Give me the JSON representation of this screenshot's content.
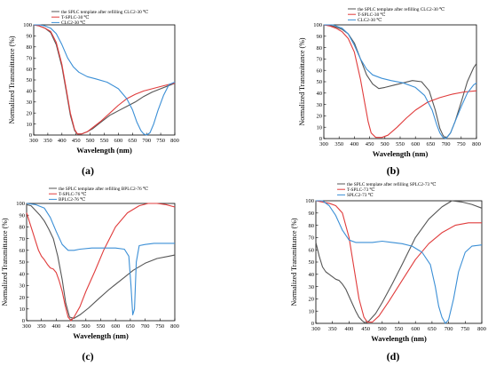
{
  "chart_data": [
    {
      "type": "line",
      "panel_label": "(a)",
      "xlabel": "Wavelength (nm)",
      "ylabel": "Normalized Transmittance (%)",
      "xlim": [
        300,
        800
      ],
      "ylim": [
        0,
        100
      ],
      "xticks": [
        300,
        350,
        400,
        450,
        500,
        550,
        600,
        650,
        700,
        750,
        800
      ],
      "yticks": [
        0,
        10,
        20,
        30,
        40,
        50,
        60,
        70,
        80,
        90,
        100
      ],
      "grid": false,
      "legend_position": "top-left",
      "series": [
        {
          "name": "the SPLC template after refilling CLC2-30 ℃",
          "color": "#555555",
          "x": [
            300,
            320,
            340,
            360,
            380,
            400,
            415,
            430,
            445,
            455,
            470,
            490,
            510,
            540,
            570,
            600,
            630,
            660,
            690,
            720,
            750,
            780,
            800
          ],
          "y": [
            100,
            99,
            97,
            93,
            82,
            62,
            40,
            18,
            4,
            1,
            1,
            3,
            6,
            12,
            18,
            22,
            26,
            30,
            35,
            39,
            42,
            45,
            47
          ]
        },
        {
          "name": "T-SPLC-30 ℃",
          "color": "#e03c3c",
          "x": [
            300,
            320,
            340,
            360,
            380,
            400,
            415,
            430,
            445,
            455,
            470,
            490,
            510,
            540,
            570,
            600,
            630,
            660,
            690,
            720,
            750,
            780,
            800
          ],
          "y": [
            100,
            99,
            97,
            94,
            84,
            64,
            42,
            20,
            5,
            1,
            1,
            3,
            7,
            13,
            20,
            27,
            33,
            37,
            40,
            42,
            44,
            46,
            47
          ]
        },
        {
          "name": "CLC2-30 ℃",
          "color": "#3b8fd6",
          "x": [
            300,
            320,
            340,
            360,
            380,
            400,
            420,
            440,
            460,
            490,
            520,
            560,
            600,
            630,
            650,
            665,
            680,
            690,
            700,
            712,
            725,
            740,
            760,
            780,
            800
          ],
          "y": [
            100,
            100,
            99,
            97,
            92,
            82,
            70,
            62,
            57,
            53,
            51,
            48,
            42,
            33,
            23,
            12,
            4,
            1,
            0,
            2,
            10,
            22,
            36,
            46,
            48
          ]
        }
      ]
    },
    {
      "type": "line",
      "panel_label": "(b)",
      "xlabel": "Wavelength (nm)",
      "ylabel": "Normalized Transmittance (%)",
      "xlim": [
        300,
        800
      ],
      "ylim": [
        0,
        100
      ],
      "xticks": [
        300,
        350,
        400,
        450,
        500,
        550,
        600,
        650,
        700,
        750,
        800
      ],
      "yticks": [
        0,
        10,
        20,
        30,
        40,
        50,
        60,
        70,
        80,
        90,
        100
      ],
      "grid": false,
      "legend_position": "top-right",
      "series": [
        {
          "name": "the SPLC template after refilling CLC2-30 ℃",
          "color": "#555555",
          "x": [
            300,
            330,
            360,
            380,
            400,
            420,
            440,
            460,
            480,
            500,
            530,
            560,
            590,
            620,
            645,
            665,
            680,
            690,
            700,
            715,
            730,
            750,
            770,
            790,
            800
          ],
          "y": [
            100,
            99,
            96,
            92,
            84,
            70,
            56,
            48,
            44,
            45,
            47,
            49,
            51,
            50,
            42,
            25,
            9,
            3,
            0,
            5,
            15,
            32,
            50,
            62,
            66
          ]
        },
        {
          "name": "T-SPLC-30 ℃",
          "color": "#e03c3c",
          "x": [
            300,
            320,
            340,
            360,
            380,
            400,
            420,
            435,
            445,
            455,
            470,
            490,
            510,
            540,
            570,
            600,
            640,
            680,
            720,
            760,
            800
          ],
          "y": [
            100,
            99,
            97,
            94,
            88,
            76,
            52,
            30,
            15,
            5,
            1,
            1,
            3,
            10,
            18,
            25,
            32,
            36,
            39,
            41,
            42
          ]
        },
        {
          "name": "CLC2-30 ℃",
          "color": "#3b8fd6",
          "x": [
            300,
            330,
            360,
            380,
            400,
            420,
            440,
            460,
            490,
            520,
            560,
            600,
            630,
            655,
            670,
            680,
            690,
            700,
            715,
            730,
            750,
            770,
            790,
            800
          ],
          "y": [
            100,
            100,
            97,
            92,
            82,
            70,
            61,
            56,
            53,
            51,
            49,
            45,
            38,
            25,
            12,
            5,
            1,
            0,
            5,
            15,
            28,
            40,
            47,
            49
          ]
        }
      ]
    },
    {
      "type": "line",
      "panel_label": "(c)",
      "xlabel": "Wavelength (nm)",
      "ylabel": "Normalized Transmittance (%)",
      "xlim": [
        300,
        800
      ],
      "ylim": [
        0,
        100
      ],
      "xticks": [
        300,
        350,
        400,
        450,
        500,
        550,
        600,
        650,
        700,
        750,
        800
      ],
      "yticks": [
        0,
        10,
        20,
        30,
        40,
        50,
        60,
        70,
        80,
        90,
        100
      ],
      "grid": false,
      "legend_position": "top-right",
      "series": [
        {
          "name": "the SPLC template after refilling BPLC2-76 ℃",
          "color": "#555555",
          "x": [
            300,
            315,
            330,
            345,
            360,
            375,
            390,
            405,
            420,
            432,
            445,
            460,
            480,
            510,
            540,
            580,
            620,
            660,
            700,
            740,
            780,
            800
          ],
          "y": [
            99,
            98,
            94,
            90,
            85,
            78,
            70,
            55,
            35,
            15,
            3,
            2,
            5,
            11,
            18,
            27,
            35,
            43,
            49,
            53,
            55,
            56
          ]
        },
        {
          "name": "T-SPLC-76 ℃",
          "color": "#e03c3c",
          "x": [
            300,
            310,
            320,
            330,
            340,
            350,
            360,
            370,
            380,
            390,
            400,
            410,
            420,
            430,
            440,
            450,
            460,
            480,
            500,
            530,
            560,
            600,
            640,
            680,
            710,
            740,
            770,
            800
          ],
          "y": [
            92,
            84,
            76,
            68,
            60,
            55,
            52,
            48,
            45,
            44,
            41,
            34,
            25,
            13,
            3,
            0,
            3,
            12,
            25,
            42,
            60,
            80,
            92,
            98,
            100,
            100,
            99,
            97
          ]
        },
        {
          "name": "BPLC2-76 ℃",
          "color": "#3b8fd6",
          "x": [
            300,
            330,
            360,
            380,
            400,
            420,
            440,
            460,
            480,
            520,
            560,
            600,
            630,
            645,
            652,
            658,
            664,
            670,
            680,
            700,
            730,
            760,
            800
          ],
          "y": [
            100,
            99,
            96,
            88,
            76,
            65,
            60,
            60,
            61,
            62,
            62,
            62,
            61,
            55,
            30,
            5,
            10,
            50,
            64,
            65,
            66,
            66,
            66
          ]
        }
      ]
    },
    {
      "type": "line",
      "panel_label": "(d)",
      "xlabel": "Wavelength (nm)",
      "ylabel": "Normalized Transmittance (%)",
      "xlim": [
        300,
        800
      ],
      "ylim": [
        0,
        100
      ],
      "xticks": [
        300,
        350,
        400,
        450,
        500,
        550,
        600,
        650,
        700,
        750,
        800
      ],
      "yticks": [
        0,
        10,
        20,
        30,
        40,
        50,
        60,
        70,
        80,
        90,
        100
      ],
      "grid": false,
      "legend_position": "top-center",
      "series": [
        {
          "name": "the SPLC template after refilling SPLC2-73 ℃",
          "color": "#555555",
          "x": [
            300,
            310,
            320,
            330,
            340,
            350,
            360,
            370,
            380,
            390,
            400,
            410,
            420,
            430,
            440,
            450,
            460,
            480,
            500,
            530,
            560,
            600,
            640,
            680,
            710,
            740,
            770,
            800
          ],
          "y": [
            66,
            55,
            46,
            42,
            40,
            38,
            36,
            35,
            32,
            28,
            22,
            16,
            10,
            5,
            2,
            0,
            2,
            8,
            17,
            32,
            48,
            70,
            85,
            95,
            100,
            99,
            97,
            94
          ]
        },
        {
          "name": "T-SPLC-73 ℃",
          "color": "#e03c3c",
          "x": [
            300,
            320,
            340,
            360,
            380,
            400,
            415,
            430,
            445,
            455,
            470,
            490,
            520,
            560,
            600,
            640,
            680,
            720,
            760,
            800
          ],
          "y": [
            100,
            99,
            98,
            96,
            90,
            70,
            45,
            20,
            5,
            1,
            1,
            6,
            18,
            35,
            52,
            65,
            74,
            80,
            82,
            82
          ]
        },
        {
          "name": "SPLC2-73 ℃",
          "color": "#3b8fd6",
          "x": [
            300,
            320,
            340,
            360,
            380,
            400,
            420,
            440,
            470,
            500,
            530,
            560,
            590,
            620,
            645,
            660,
            670,
            680,
            690,
            700,
            715,
            730,
            750,
            770,
            800
          ],
          "y": [
            100,
            100,
            96,
            88,
            76,
            68,
            66,
            66,
            66,
            67,
            66,
            65,
            63,
            58,
            48,
            30,
            14,
            5,
            0,
            3,
            20,
            42,
            58,
            63,
            64
          ]
        }
      ]
    }
  ]
}
